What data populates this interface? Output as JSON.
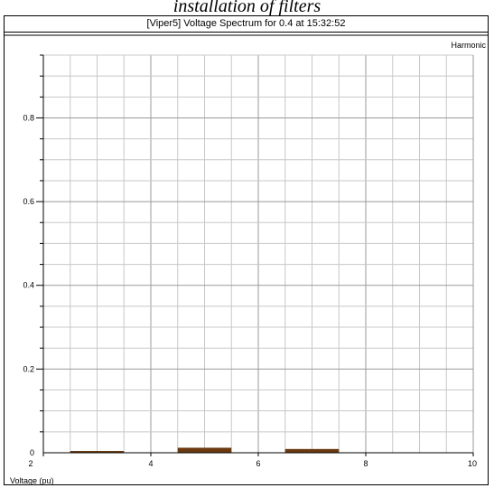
{
  "caption": "installation of filters",
  "window": {
    "title": "[Viper5] Voltage Spectrum for 0.4 at 15:32:52"
  },
  "chart_data": {
    "type": "bar",
    "series_label": "Harmonic",
    "xlabel": "Voltage (pu)",
    "ylabel": "",
    "xlim": [
      2,
      10
    ],
    "ylim": [
      0,
      0.95
    ],
    "x_ticks": [
      2,
      4,
      6,
      8,
      10
    ],
    "y_ticks": [
      0,
      0.2,
      0.4,
      0.6,
      0.8
    ],
    "x_tick_labels": [
      "2",
      "4",
      "6",
      "8",
      "10"
    ],
    "y_tick_labels": [
      "0",
      "0.2",
      "0.4",
      "0.6",
      "0.8"
    ],
    "grid": true,
    "bar_color": "#6b3a10",
    "bars": [
      {
        "x": 3,
        "value": 0.003
      },
      {
        "x": 5,
        "value": 0.012
      },
      {
        "x": 7,
        "value": 0.009
      }
    ]
  }
}
